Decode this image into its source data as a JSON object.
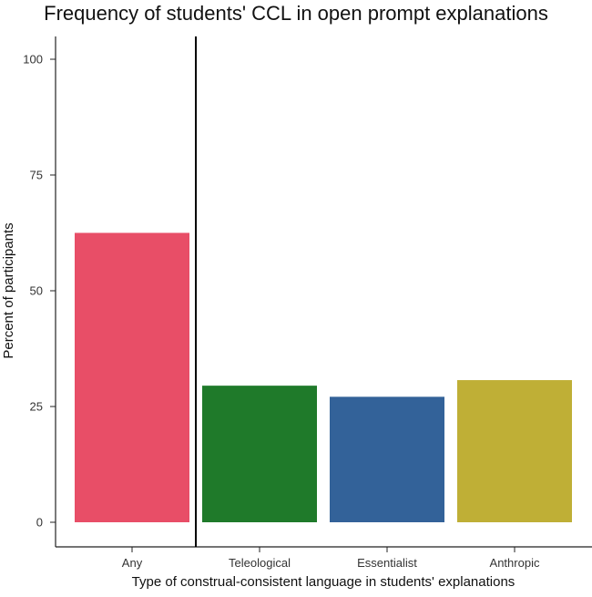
{
  "chart_data": {
    "type": "bar",
    "title": "Frequency of students' CCL in open prompt explanations",
    "xlabel": "Type of construal-consistent language in students' explanations",
    "ylabel": "Percent of participants",
    "categories": [
      "Any",
      "Teleological",
      "Essentialist",
      "Anthropic"
    ],
    "values": [
      62.5,
      29.5,
      27.1,
      30.7
    ],
    "colors": [
      "#e84e67",
      "#1f7a2a",
      "#336299",
      "#bfaf36"
    ],
    "ylim": [
      0,
      100
    ],
    "yticks": [
      0,
      25,
      50,
      75,
      100
    ],
    "separator_after_index": 0,
    "grid": false,
    "legend": "none"
  }
}
